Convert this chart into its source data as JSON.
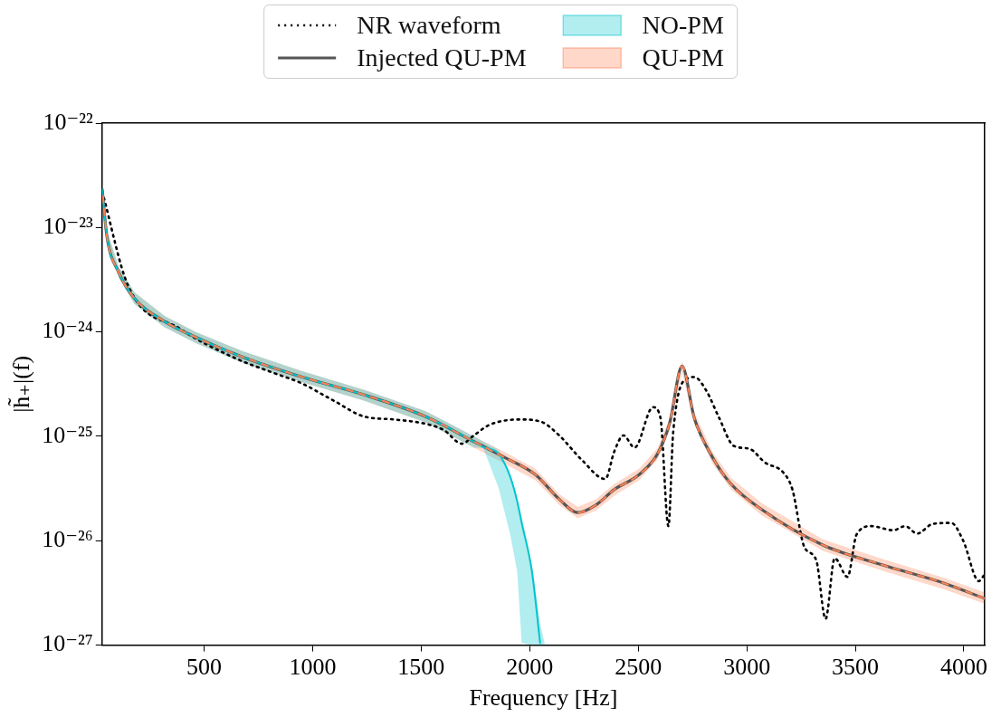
{
  "chart_data": {
    "type": "line",
    "xlabel": "Frequency [Hz]",
    "ylabel": "|h̃₊|(f)",
    "log": "y",
    "grid": false,
    "legend": "top",
    "marker": "none",
    "xlim": [
      30,
      4096
    ],
    "xticks": [
      500,
      1000,
      1500,
      2000,
      2500,
      3000,
      3500,
      4000
    ],
    "ylim": [
      1e-27,
      1e-22
    ],
    "yticks": [
      {
        "value": 1e-27,
        "label": "10⁻²⁷"
      },
      {
        "value": 1e-26,
        "label": "10⁻²⁶"
      },
      {
        "value": 1e-25,
        "label": "10⁻²⁵"
      },
      {
        "value": 1e-24,
        "label": "10⁻²⁴"
      },
      {
        "value": 1e-23,
        "label": "10⁻²³"
      },
      {
        "value": 1e-22,
        "label": "10⁻²²"
      }
    ],
    "series": [
      {
        "name": "NR waveform",
        "color": "#000000",
        "line_style": "dotted",
        "x": [
          31,
          149,
          390,
          644,
          813,
          952,
          1096,
          1236,
          1375,
          1519,
          1604,
          1688,
          1743,
          1815,
          1955,
          2052,
          2136,
          2238,
          2348,
          2390,
          2432,
          2483,
          2568,
          2602,
          2639,
          2661,
          2729,
          2758,
          2813,
          2872,
          2940,
          3012,
          3084,
          3168,
          3210,
          3265,
          3320,
          3363,
          3405,
          3464,
          3506,
          3574,
          3675,
          3730,
          3785,
          3857,
          3942,
          3997,
          4069,
          4094
        ],
        "values": [
          2.2e-23,
          2.8e-24,
          1.07e-24,
          5.6e-25,
          4.1e-25,
          3.2e-25,
          2.2e-25,
          1.55e-25,
          1.45e-25,
          1.32e-25,
          1.15e-25,
          8.5e-26,
          1.02e-25,
          1.29e-25,
          1.45e-25,
          1.38e-25,
          1.02e-25,
          6e-26,
          3.9e-26,
          7.2e-26,
          1.02e-25,
          7.8e-26,
          1.9e-25,
          1.51e-25,
          1.38e-26,
          1.1e-25,
          3.6e-25,
          3.7e-25,
          2.75e-25,
          1.51e-25,
          8.1e-26,
          7.6e-26,
          5.6e-26,
          4.5e-26,
          3.1e-26,
          8.7e-27,
          6.5e-27,
          1.78e-27,
          6.8e-27,
          4.5e-27,
          1.15e-26,
          1.38e-26,
          1.26e-26,
          1.38e-26,
          1.17e-26,
          1.45e-26,
          1.48e-26,
          1e-26,
          4.1e-27,
          4.7e-27
        ]
      },
      {
        "name": "Injected QU-PM",
        "color": "#555555",
        "line_style": "solid",
        "x": [
          31,
          52,
          107,
          179,
          318,
          462,
          673,
          952,
          1236,
          1519,
          1743,
          1883,
          2026,
          2136,
          2221,
          2305,
          2390,
          2504,
          2589,
          2644,
          2702,
          2758,
          2842,
          2927,
          3067,
          3350,
          3633,
          3912,
          4094
        ],
        "values": [
          2.3e-23,
          8.3e-24,
          3.7e-24,
          2.1e-24,
          1.26e-24,
          8.9e-25,
          5.8e-25,
          3.7e-25,
          2.5e-25,
          1.55e-25,
          8.9e-26,
          6.3e-26,
          4.3e-26,
          2.5e-26,
          1.86e-26,
          2.2e-26,
          3.1e-26,
          4.3e-26,
          6.8e-26,
          1.32e-25,
          4.7e-25,
          1.5e-25,
          6.3e-26,
          3.5e-26,
          2e-26,
          9.1e-27,
          5.8e-27,
          3.9e-27,
          2.8e-27
        ]
      },
      {
        "name": "NO-PM",
        "color": "#00c5cd",
        "line_style": "solid",
        "x": [
          31,
          52,
          107,
          179,
          318,
          462,
          673,
          952,
          1236,
          1519,
          1743,
          1785,
          1857,
          1912,
          1942,
          1963,
          2010,
          2048,
          2069
        ],
        "values": [
          2.3e-23,
          8.3e-24,
          3.7e-24,
          2.1e-24,
          1.26e-24,
          8.9e-25,
          5.8e-25,
          3.7e-25,
          2.5e-25,
          1.55e-25,
          8.9e-26,
          7.9e-26,
          6.8e-26,
          4e-26,
          2.4e-26,
          1.48e-26,
          5.1e-27,
          1.05e-27,
          null
        ],
        "lower": [
          2e-23,
          7.3e-24,
          3.3e-24,
          1.85e-24,
          1.11e-24,
          7.8e-25,
          5.1e-25,
          3.3e-25,
          2.2e-25,
          1.36e-25,
          7.8e-26,
          7.8e-26,
          3.2e-26,
          1.1e-26,
          5.1e-27,
          1.05e-27,
          1e-27,
          1e-27,
          1e-27
        ],
        "upper": [
          2.6e-23,
          9.4e-24,
          4.2e-24,
          2.4e-24,
          1.42e-24,
          1e-24,
          6.6e-25,
          4.2e-25,
          2.8e-25,
          1.75e-25,
          1e-25,
          8.9e-26,
          7.4e-26,
          4.2e-26,
          2.6e-26,
          1.7e-26,
          6e-27,
          1.6e-27,
          1.05e-27
        ]
      },
      {
        "name": "QU-PM",
        "color": "#ff7f50",
        "line_style": "dashed",
        "x": [
          31,
          52,
          107,
          179,
          318,
          462,
          673,
          952,
          1236,
          1519,
          1743,
          1883,
          2026,
          2136,
          2221,
          2305,
          2390,
          2504,
          2589,
          2644,
          2702,
          2758,
          2842,
          2927,
          3067,
          3350,
          3633,
          3912,
          4094
        ],
        "values": [
          2.3e-23,
          8.3e-24,
          3.7e-24,
          2.1e-24,
          1.26e-24,
          8.9e-25,
          5.8e-25,
          3.7e-25,
          2.5e-25,
          1.55e-25,
          8.9e-26,
          6.3e-26,
          4.3e-26,
          2.5e-26,
          1.86e-26,
          2.2e-26,
          3.1e-26,
          4.3e-26,
          6.8e-26,
          1.32e-25,
          4.7e-25,
          1.5e-25,
          6.3e-26,
          3.5e-26,
          2e-26,
          9.1e-27,
          5.8e-27,
          3.9e-27,
          2.8e-27
        ],
        "lower": [
          2e-23,
          7.3e-24,
          3.3e-24,
          1.85e-24,
          1.11e-24,
          7.8e-25,
          5.1e-25,
          3.3e-25,
          2.2e-25,
          1.36e-25,
          7.8e-26,
          5.5e-26,
          3.8e-26,
          2.2e-26,
          1.64e-26,
          1.94e-26,
          2.7e-26,
          3.8e-26,
          6e-26,
          1.16e-25,
          4.1e-25,
          1.32e-25,
          5.5e-26,
          3.1e-26,
          1.76e-26,
          8e-27,
          5.1e-27,
          3.4e-27,
          2.5e-27
        ],
        "upper": [
          2.6e-23,
          9.4e-24,
          4.2e-24,
          2.4e-24,
          1.42e-24,
          1e-24,
          6.6e-25,
          4.2e-25,
          2.8e-25,
          1.75e-25,
          1e-25,
          7.1e-26,
          4.9e-26,
          2.8e-26,
          2.1e-26,
          2.5e-26,
          3.5e-26,
          4.9e-26,
          7.7e-26,
          1.49e-25,
          5.3e-25,
          1.7e-25,
          7.1e-26,
          4e-26,
          2.3e-26,
          1.03e-26,
          6.6e-27,
          4.4e-27,
          3.2e-27
        ]
      }
    ]
  }
}
